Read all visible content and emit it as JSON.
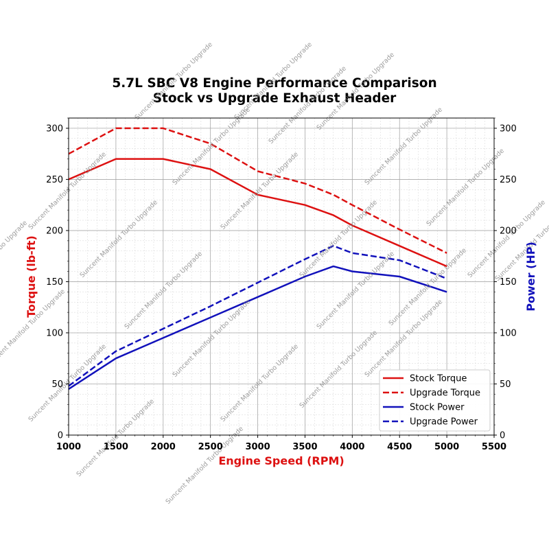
{
  "chart_data": {
    "type": "line",
    "title": "5.7L SBC V8 Engine Performance Comparison",
    "subtitle": "Stock vs Upgrade Exhaust Header",
    "xlabel": "Engine Speed (RPM)",
    "ylabel_left": "Torque (lb-ft)",
    "ylabel_right": "Power (HP)",
    "xlim": [
      1000,
      5500
    ],
    "ylim_left": [
      0,
      310
    ],
    "ylim_right": [
      0,
      310
    ],
    "x_ticks": [
      1000,
      1500,
      2000,
      2500,
      3000,
      3500,
      4000,
      4500,
      5000,
      5500
    ],
    "y_ticks": [
      0,
      50,
      100,
      150,
      200,
      250,
      300
    ],
    "grid": true,
    "legend_position": "lower-right",
    "axis_colors": {
      "left": "#dd1111",
      "right": "#1111bb",
      "x": "#dd1111"
    },
    "series": [
      {
        "name": "Stock Torque",
        "axis": "left",
        "color": "#dd1111",
        "style": "solid",
        "x": [
          1000,
          1500,
          2000,
          2500,
          3000,
          3500,
          3800,
          4000,
          4500,
          5000
        ],
        "values": [
          250,
          270,
          270,
          260,
          235,
          225,
          215,
          205,
          185,
          165
        ]
      },
      {
        "name": "Upgrade Torque",
        "axis": "left",
        "color": "#dd1111",
        "style": "dashed",
        "x": [
          1000,
          1500,
          2000,
          2500,
          3000,
          3500,
          3800,
          4000,
          4500,
          5000
        ],
        "values": [
          275,
          300,
          300,
          285,
          258,
          246,
          235,
          225,
          201,
          178
        ]
      },
      {
        "name": "Stock Power",
        "axis": "right",
        "color": "#1111bb",
        "style": "solid",
        "x": [
          1000,
          1500,
          2000,
          2500,
          3000,
          3500,
          3800,
          4000,
          4500,
          5000
        ],
        "values": [
          45,
          75,
          95,
          115,
          135,
          155,
          165,
          160,
          155,
          140
        ]
      },
      {
        "name": "Upgrade Power",
        "axis": "right",
        "color": "#1111bb",
        "style": "dashed",
        "x": [
          1000,
          1500,
          2000,
          2500,
          3000,
          3500,
          3800,
          4000,
          4500,
          5000
        ],
        "values": [
          48,
          82,
          104,
          126,
          149,
          172,
          185,
          178,
          171,
          153
        ]
      }
    ],
    "watermark": "Suncent Manifold Turbo Upgrade"
  }
}
